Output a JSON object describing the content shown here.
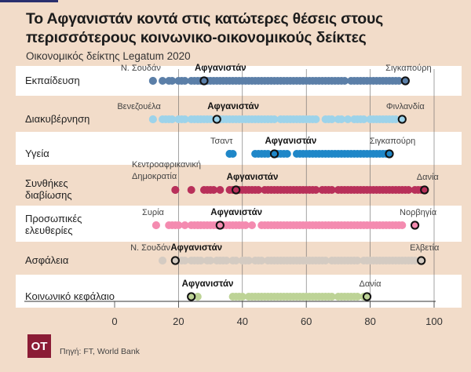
{
  "title": "Το Αφγανιστάν κοντά στις κατώτερες θέσεις στους περισσότερους κοινωνικο-οικονομικούς δείκτες",
  "subtitle": "Οικονομικός δείκτης Legatum 2020",
  "source": "Πηγή: FT, World Bank",
  "logo": "OT",
  "chart_data": {
    "type": "scatter",
    "title": "Το Αφγανιστάν κοντά στις κατώτερες θέσεις στους περισσότερους κοινωνικο-οικονομικούς δείκτες",
    "subtitle": "Οικονομικός δείκτης Legatum 2020",
    "xlim": [
      0,
      100
    ],
    "xticks": [
      "0",
      "20",
      "40",
      "60",
      "80",
      "100"
    ],
    "xtick_values": [
      0,
      20,
      40,
      60,
      80,
      100
    ],
    "grid": true,
    "highlight": "Αφγανιστάν",
    "series": [
      {
        "name": "Εκπαίδευση",
        "color": "#5b7fa8",
        "band": "white",
        "min_label": "Ν. Σουδάν",
        "min": 12,
        "max_label": "Σιγκαπούρη",
        "max": 91,
        "afghanistan": 28,
        "values": [
          12,
          15,
          17,
          18,
          20,
          21,
          22,
          24,
          25,
          26,
          27,
          29,
          30,
          31,
          32,
          33,
          34,
          35,
          36,
          37,
          38,
          39,
          40,
          41,
          42,
          43,
          44,
          45,
          46,
          47,
          48,
          49,
          50,
          51,
          52,
          53,
          54,
          55,
          56,
          57,
          58,
          59,
          60,
          61,
          62,
          63,
          64,
          65,
          66,
          67,
          68,
          69,
          70,
          71,
          72,
          74,
          75,
          76,
          77,
          78,
          79,
          80,
          81,
          82,
          83,
          84,
          85,
          86,
          87,
          88,
          89
        ]
      },
      {
        "name": "Διακυβέρνηση",
        "color": "#9dd3ea",
        "band": "beige",
        "min_label": "Βενεζουέλα",
        "min": 12,
        "max_label": "Φινλανδία",
        "max": 90,
        "afghanistan": 32,
        "values": [
          12,
          15,
          16,
          17,
          18,
          20,
          21,
          22,
          24,
          25,
          26,
          27,
          28,
          29,
          30,
          33,
          34,
          35,
          36,
          37,
          38,
          39,
          40,
          41,
          42,
          43,
          44,
          45,
          46,
          47,
          48,
          49,
          50,
          52,
          53,
          54,
          55,
          56,
          57,
          58,
          59,
          60,
          61,
          62,
          63,
          66,
          67,
          68,
          70,
          71,
          73,
          75,
          76,
          77,
          78,
          80,
          81,
          82,
          83,
          84,
          85,
          86,
          87,
          88
        ]
      },
      {
        "name": "Υγεία",
        "color": "#1f87c8",
        "band": "white",
        "min_label": "Τσαντ",
        "min": 36,
        "max_label": "Σιγκαπούρη",
        "max": 86,
        "afghanistan": 50,
        "values": [
          36,
          37,
          44,
          45,
          46,
          47,
          48,
          51,
          52,
          53,
          54,
          57,
          58,
          59,
          60,
          61,
          62,
          63,
          64,
          65,
          66,
          67,
          68,
          69,
          70,
          71,
          72,
          73,
          74,
          75,
          76,
          77,
          78,
          79,
          80,
          81,
          82,
          83,
          84,
          85
        ]
      },
      {
        "name": "Συνθήκες διαβίωσης",
        "color": "#b8305a",
        "band": "beige",
        "min_label": "Κεντροαφρικανική Δημοκρατία",
        "min": 19,
        "max_label": "Δανία",
        "max": 97,
        "afghanistan": 38,
        "values": [
          19,
          24,
          28,
          29,
          30,
          31,
          33,
          36,
          37,
          39,
          40,
          41,
          42,
          43,
          44,
          45,
          47,
          48,
          49,
          50,
          51,
          52,
          53,
          54,
          55,
          56,
          57,
          58,
          59,
          60,
          61,
          62,
          63,
          65,
          66,
          67,
          68,
          70,
          71,
          72,
          73,
          74,
          75,
          76,
          77,
          78,
          79,
          80,
          81,
          82,
          83,
          84,
          85,
          86,
          87,
          88,
          89,
          90,
          91,
          92,
          94,
          95,
          96
        ]
      },
      {
        "name": "Προσωπικές ελευθερίες",
        "color": "#f48bb0",
        "band": "white",
        "min_label": "Συρία",
        "min": 13,
        "max_label": "Νορβηγία",
        "max": 94,
        "afghanistan": 33,
        "values": [
          13,
          17,
          18,
          19,
          20,
          22,
          24,
          25,
          26,
          27,
          28,
          29,
          30,
          31,
          32,
          34,
          35,
          36,
          37,
          38,
          39,
          40,
          41,
          43,
          46,
          47,
          48,
          49,
          50,
          51,
          52,
          53,
          54,
          55,
          56,
          57,
          58,
          59,
          60,
          61,
          62,
          63,
          64,
          65,
          66,
          67,
          68,
          69,
          70,
          71,
          72,
          73,
          74,
          75,
          76,
          77,
          78,
          79,
          80,
          81,
          82,
          83,
          84,
          85,
          86,
          87,
          88,
          89,
          90
        ]
      },
      {
        "name": "Ασφάλεια",
        "color": "#d4cbc2",
        "band": "beige",
        "min_label": "Ν. Σουδάν",
        "min": 15,
        "max_label": "Ελβετία",
        "max": 96,
        "afghanistan": 19,
        "values": [
          15,
          21,
          22,
          24,
          25,
          26,
          27,
          29,
          30,
          32,
          33,
          34,
          35,
          37,
          38,
          40,
          41,
          42,
          44,
          45,
          46,
          48,
          49,
          50,
          51,
          52,
          53,
          54,
          55,
          56,
          57,
          58,
          59,
          60,
          61,
          62,
          63,
          64,
          65,
          66,
          68,
          69,
          70,
          71,
          72,
          73,
          74,
          75,
          76,
          78,
          79,
          80,
          81,
          82,
          83,
          84,
          85,
          86,
          87,
          88,
          89,
          90,
          91,
          92,
          93,
          94
        ]
      },
      {
        "name": "Κοινωνικό κεφάλαιο",
        "color": "#bdd396",
        "band": "white",
        "min_label": "",
        "min": 24,
        "max_label": "Δανία",
        "max": 79,
        "afghanistan": 24,
        "values": [
          26,
          37,
          38,
          39,
          40,
          42,
          43,
          44,
          45,
          46,
          47,
          48,
          49,
          50,
          51,
          52,
          53,
          54,
          55,
          56,
          57,
          58,
          59,
          60,
          61,
          62,
          63,
          64,
          65,
          66,
          67,
          68,
          70,
          71,
          72,
          73,
          74,
          75,
          76,
          78
        ]
      }
    ]
  }
}
